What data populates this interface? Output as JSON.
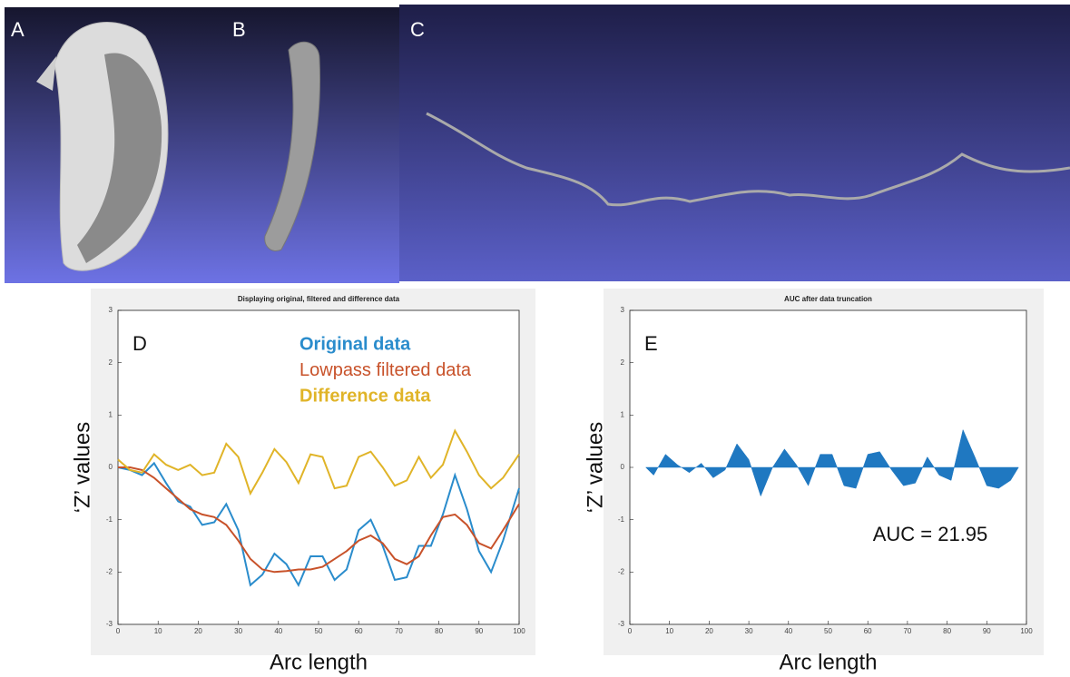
{
  "image_panels": [
    "A",
    "B",
    "C"
  ],
  "chart_data": [
    {
      "type": "line",
      "panel": "D",
      "title": "Displaying original, filtered and difference data",
      "xlabel": "Arc length",
      "ylabel": "‘Z’ values",
      "x": [
        0,
        3,
        6,
        9,
        12,
        15,
        18,
        21,
        24,
        27,
        30,
        33,
        36,
        39,
        42,
        45,
        48,
        51,
        54,
        57,
        60,
        63,
        66,
        69,
        72,
        75,
        78,
        81,
        84,
        87,
        90,
        93,
        96,
        100
      ],
      "series": [
        {
          "name": "Original data",
          "color": "#2a8ccc",
          "values": [
            0,
            -0.05,
            -0.15,
            0.08,
            -0.3,
            -0.65,
            -0.75,
            -1.1,
            -1.05,
            -0.7,
            -1.2,
            -2.25,
            -2.05,
            -1.65,
            -1.85,
            -2.25,
            -1.7,
            -1.7,
            -2.15,
            -1.95,
            -1.2,
            -1.0,
            -1.5,
            -2.15,
            -2.1,
            -1.5,
            -1.5,
            -0.9,
            -0.15,
            -0.8,
            -1.6,
            -2.0,
            -1.4,
            -0.4
          ]
        },
        {
          "name": "Lowpass filtered data",
          "color": "#c8522a",
          "values": [
            0,
            0,
            -0.05,
            -0.2,
            -0.4,
            -0.6,
            -0.8,
            -0.9,
            -0.95,
            -1.1,
            -1.4,
            -1.75,
            -1.95,
            -2.0,
            -1.98,
            -1.95,
            -1.95,
            -1.9,
            -1.75,
            -1.6,
            -1.4,
            -1.3,
            -1.45,
            -1.75,
            -1.85,
            -1.7,
            -1.3,
            -0.95,
            -0.9,
            -1.1,
            -1.45,
            -1.55,
            -1.2,
            -0.7
          ]
        },
        {
          "name": "Difference data",
          "color": "#e0b428",
          "values": [
            0.15,
            -0.05,
            -0.1,
            0.25,
            0.05,
            -0.05,
            0.05,
            -0.15,
            -0.1,
            0.45,
            0.2,
            -0.5,
            -0.1,
            0.35,
            0.1,
            -0.3,
            0.25,
            0.2,
            -0.4,
            -0.35,
            0.2,
            0.3,
            0,
            -0.35,
            -0.25,
            0.2,
            -0.2,
            0.05,
            0.7,
            0.3,
            -0.15,
            -0.4,
            -0.2,
            0.25
          ]
        }
      ],
      "xlim": [
        0,
        100
      ],
      "ylim": [
        -3,
        3
      ],
      "xticks": [
        0,
        10,
        20,
        30,
        40,
        50,
        60,
        70,
        80,
        90,
        100
      ],
      "yticks": [
        -3,
        -2,
        -1,
        0,
        1,
        2,
        3
      ]
    },
    {
      "type": "area",
      "panel": "E",
      "title": "AUC after data truncation",
      "xlabel": "Arc length",
      "ylabel": "‘Z’ values",
      "annotation": "AUC = 21.95",
      "x": [
        4,
        6,
        9,
        12,
        15,
        18,
        21,
        24,
        27,
        30,
        33,
        36,
        39,
        42,
        45,
        48,
        51,
        54,
        57,
        60,
        63,
        66,
        69,
        72,
        75,
        78,
        81,
        84,
        87,
        90,
        93,
        96,
        98
      ],
      "values": [
        0,
        -0.15,
        0.25,
        0.05,
        -0.1,
        0.08,
        -0.2,
        -0.05,
        0.45,
        0.15,
        -0.55,
        0,
        0.35,
        0.05,
        -0.35,
        0.25,
        0.25,
        -0.35,
        -0.4,
        0.25,
        0.3,
        -0.05,
        -0.35,
        -0.3,
        0.2,
        -0.15,
        -0.25,
        0.72,
        0.2,
        -0.35,
        -0.4,
        -0.25,
        0
      ],
      "color": "#1f78c1",
      "xlim": [
        0,
        100
      ],
      "ylim": [
        -3,
        3
      ],
      "xticks": [
        0,
        10,
        20,
        30,
        40,
        50,
        60,
        70,
        80,
        90,
        100
      ],
      "yticks": [
        -3,
        -2,
        -1,
        0,
        1,
        2,
        3
      ]
    }
  ]
}
